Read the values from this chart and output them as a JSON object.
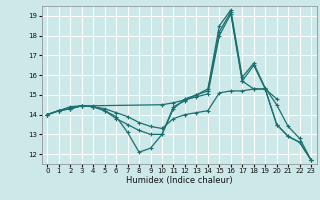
{
  "title": "",
  "xlabel": "Humidex (Indice chaleur)",
  "background_color": "#cce8e8",
  "grid_color": "#ffffff",
  "line_color": "#1a7070",
  "ylim": [
    11.5,
    19.5
  ],
  "xlim": [
    -0.5,
    23.5
  ],
  "yticks": [
    12,
    13,
    14,
    15,
    16,
    17,
    18,
    19
  ],
  "xticks": [
    0,
    1,
    2,
    3,
    4,
    5,
    6,
    7,
    8,
    9,
    10,
    11,
    12,
    13,
    14,
    15,
    16,
    17,
    18,
    19,
    20,
    21,
    22,
    23
  ],
  "lines": [
    {
      "x": [
        0,
        1,
        2,
        3,
        4,
        10,
        11,
        12,
        13,
        14,
        15,
        16,
        17,
        18,
        19,
        20,
        21,
        22,
        23
      ],
      "y": [
        14.0,
        14.2,
        14.4,
        14.45,
        14.45,
        14.5,
        14.6,
        14.75,
        14.9,
        15.05,
        18.0,
        19.1,
        15.7,
        16.5,
        15.3,
        13.5,
        12.9,
        12.6,
        11.7
      ]
    },
    {
      "x": [
        0,
        1,
        2,
        3,
        4,
        5,
        6,
        7,
        8,
        9,
        10,
        11,
        12,
        13,
        14,
        15,
        16,
        17,
        18,
        19,
        20,
        21,
        22,
        23
      ],
      "y": [
        14.0,
        14.2,
        14.3,
        14.45,
        14.4,
        14.2,
        13.9,
        13.1,
        12.1,
        12.3,
        13.0,
        14.4,
        14.7,
        15.0,
        15.3,
        18.5,
        19.3,
        15.9,
        16.6,
        15.35,
        14.5,
        13.4,
        12.8,
        11.7
      ]
    },
    {
      "x": [
        0,
        1,
        2,
        3,
        4,
        5,
        6,
        7,
        8,
        9,
        10,
        11,
        12,
        13,
        14,
        15,
        16,
        17,
        18,
        19,
        20
      ],
      "y": [
        14.0,
        14.2,
        14.3,
        14.45,
        14.4,
        14.2,
        13.8,
        13.5,
        13.2,
        13.0,
        13.0,
        14.3,
        14.8,
        15.0,
        15.2,
        18.2,
        19.2,
        15.7,
        15.3,
        15.3,
        14.8
      ]
    },
    {
      "x": [
        0,
        1,
        2,
        3,
        4,
        5,
        6,
        7,
        8,
        9,
        10,
        11,
        12,
        13,
        14,
        15,
        16,
        17,
        18,
        19,
        20,
        21,
        22,
        23
      ],
      "y": [
        14.0,
        14.2,
        14.3,
        14.45,
        14.4,
        14.3,
        14.1,
        13.9,
        13.6,
        13.4,
        13.3,
        13.8,
        14.0,
        14.1,
        14.2,
        15.1,
        15.2,
        15.2,
        15.3,
        15.3,
        13.5,
        12.9,
        12.6,
        11.7
      ]
    }
  ]
}
